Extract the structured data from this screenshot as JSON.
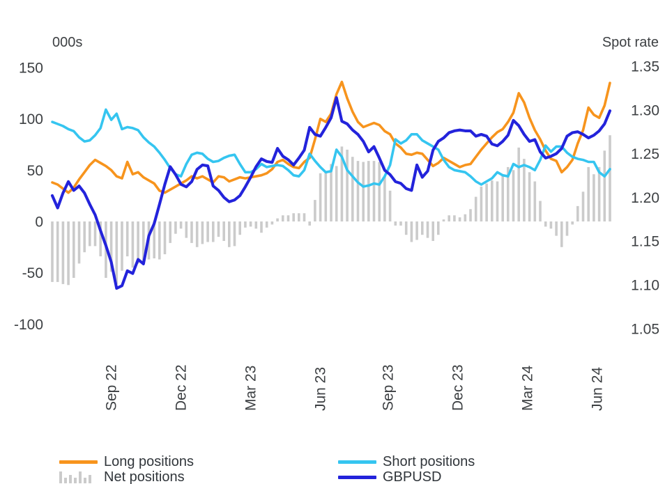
{
  "chart_data": {
    "type": "line+bar",
    "title": "",
    "left_axis": {
      "title": "000s",
      "ticks": [
        150,
        100,
        50,
        0,
        -50,
        -100
      ],
      "min": -100,
      "max": 150
    },
    "right_axis": {
      "title": "Spot rate",
      "ticks": [
        1.35,
        1.3,
        1.25,
        1.2,
        1.15,
        1.1,
        1.05
      ],
      "min": 1.05,
      "max": 1.35
    },
    "x_axis": {
      "tick_labels": [
        "Sep 22",
        "Dec 22",
        "Mar 23",
        "Jun 23",
        "Sep 23",
        "Dec 23",
        "Mar 24",
        "Jun 24"
      ],
      "tick_positions_weeks": [
        11,
        24,
        37,
        50,
        62.6,
        75.6,
        88.6,
        101.6
      ],
      "n_points": 105,
      "frequency": "weekly"
    },
    "grid": "off",
    "legend_position": "bottom",
    "series": [
      {
        "name": "Long positions",
        "type": "line",
        "axis": "left",
        "color": "#F7941D",
        "values": [
          38,
          36,
          32,
          28,
          33,
          41,
          48,
          55,
          60,
          57,
          54,
          50,
          44,
          42,
          58,
          46,
          48,
          43,
          40,
          37,
          30,
          28,
          31,
          34,
          37,
          40,
          44,
          42,
          44,
          41,
          38,
          44,
          43,
          39,
          41,
          43,
          42,
          43,
          44,
          45,
          47,
          51,
          58,
          60,
          56,
          53,
          52,
          58,
          62,
          80,
          100,
          97,
          105,
          124,
          136,
          120,
          107,
          97,
          92,
          94,
          96,
          94,
          88,
          85,
          76,
          72,
          66,
          65,
          67,
          66,
          60,
          54,
          57,
          62,
          59,
          56,
          53,
          55,
          56,
          63,
          70,
          76,
          82,
          87,
          90,
          97,
          106,
          125,
          116,
          101,
          89,
          80,
          69,
          61,
          59,
          48,
          53,
          60,
          76,
          89,
          111,
          104,
          101,
          113,
          135
        ]
      },
      {
        "name": "Short positions",
        "type": "line",
        "axis": "left",
        "color": "#35C5F0",
        "values": [
          97,
          95,
          93,
          90,
          88,
          82,
          78,
          79,
          84,
          91,
          109,
          99,
          105,
          90,
          92,
          91,
          89,
          82,
          77,
          73,
          67,
          60,
          52,
          46,
          44,
          56,
          65,
          67,
          66,
          61,
          58,
          59,
          62,
          64,
          65,
          56,
          48,
          48,
          51,
          56,
          53,
          54,
          55,
          54,
          50,
          45,
          44,
          50,
          66,
          59,
          53,
          48,
          49,
          70,
          63,
          50,
          44,
          38,
          34,
          35,
          37,
          36,
          44,
          55,
          80,
          76,
          79,
          85,
          85,
          79,
          76,
          73,
          70,
          60,
          53,
          50,
          49,
          48,
          44,
          39,
          36,
          39,
          42,
          48,
          45,
          44,
          56,
          53,
          55,
          53,
          50,
          60,
          74,
          68,
          73,
          73,
          67,
          63,
          61,
          60,
          58,
          58,
          48,
          44,
          51
        ]
      },
      {
        "name": "Net positions",
        "type": "bar",
        "axis": "left",
        "color": "#CBCBCB",
        "values": [
          -59,
          -59,
          -61,
          -62,
          -55,
          -41,
          -30,
          -24,
          -24,
          -34,
          -55,
          -49,
          -61,
          -48,
          -34,
          -45,
          -41,
          -39,
          -37,
          -36,
          -37,
          -32,
          -21,
          -12,
          -7,
          -16,
          -21,
          -25,
          -22,
          -20,
          -20,
          -15,
          -19,
          -25,
          -24,
          -13,
          -6,
          -5,
          -7,
          -11,
          -6,
          -3,
          3,
          6,
          6,
          8,
          8,
          8,
          -4,
          21,
          47,
          49,
          56,
          54,
          73,
          70,
          63,
          59,
          58,
          59,
          59,
          58,
          44,
          30,
          -4,
          -4,
          -13,
          -20,
          -18,
          -13,
          -16,
          -19,
          -13,
          2,
          6,
          6,
          4,
          7,
          12,
          24,
          34,
          37,
          40,
          39,
          45,
          53,
          50,
          72,
          61,
          48,
          39,
          20,
          -5,
          -7,
          -14,
          -25,
          -14,
          -3,
          15,
          29,
          53,
          46,
          53,
          69,
          84
        ]
      },
      {
        "name": "GBPUSD",
        "type": "line",
        "axis": "right",
        "color": "#2323DB",
        "values": [
          1.202,
          1.188,
          1.205,
          1.218,
          1.208,
          1.213,
          1.205,
          1.192,
          1.18,
          1.162,
          1.145,
          1.126,
          1.096,
          1.099,
          1.116,
          1.113,
          1.129,
          1.124,
          1.156,
          1.17,
          1.192,
          1.215,
          1.235,
          1.226,
          1.215,
          1.212,
          1.218,
          1.232,
          1.237,
          1.236,
          1.213,
          1.208,
          1.2,
          1.195,
          1.197,
          1.202,
          1.212,
          1.223,
          1.235,
          1.244,
          1.241,
          1.24,
          1.256,
          1.247,
          1.243,
          1.237,
          1.245,
          1.254,
          1.28,
          1.272,
          1.27,
          1.28,
          1.291,
          1.314,
          1.287,
          1.284,
          1.277,
          1.272,
          1.264,
          1.252,
          1.258,
          1.245,
          1.231,
          1.226,
          1.218,
          1.216,
          1.21,
          1.208,
          1.237,
          1.223,
          1.23,
          1.254,
          1.264,
          1.268,
          1.274,
          1.276,
          1.277,
          1.276,
          1.276,
          1.27,
          1.272,
          1.27,
          1.261,
          1.259,
          1.264,
          1.271,
          1.288,
          1.282,
          1.272,
          1.264,
          1.266,
          1.252,
          1.245,
          1.247,
          1.25,
          1.256,
          1.27,
          1.274,
          1.275,
          1.272,
          1.268,
          1.271,
          1.276,
          1.284,
          1.299
        ]
      }
    ]
  },
  "legend": {
    "items": [
      {
        "label": "Long positions",
        "swatch": "line",
        "series": "Long positions"
      },
      {
        "label": "Net positions",
        "swatch": "bars",
        "series": "Net positions"
      },
      {
        "label": "Short positions",
        "swatch": "line",
        "series": "Short positions"
      },
      {
        "label": "GBPUSD",
        "swatch": "line",
        "series": "GBPUSD"
      }
    ]
  }
}
